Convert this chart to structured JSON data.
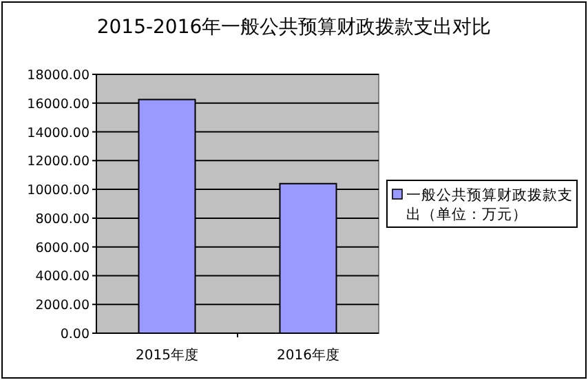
{
  "chart_data": {
    "type": "bar",
    "title": "2015-2016年一般公共预算财政拨款支出对比",
    "categories": [
      "2015年度",
      "2016年度"
    ],
    "series": [
      {
        "name": "一般公共预算财政拨款支出（单位：万元）",
        "color": "#9999ff",
        "values": [
          16250,
          10400
        ]
      }
    ],
    "ylim": [
      0,
      18000
    ],
    "yticks": [
      {
        "value": 0,
        "label": "0.00"
      },
      {
        "value": 2000,
        "label": "2000.00"
      },
      {
        "value": 4000,
        "label": "4000.00"
      },
      {
        "value": 6000,
        "label": "6000.00"
      },
      {
        "value": 8000,
        "label": "8000.00"
      },
      {
        "value": 10000,
        "label": "10000.00"
      },
      {
        "value": 12000,
        "label": "12000.00"
      },
      {
        "value": 14000,
        "label": "14000.00"
      },
      {
        "value": 16000,
        "label": "16000.00"
      },
      {
        "value": 18000,
        "label": "18000.00"
      }
    ],
    "grid": "y",
    "legend": "right"
  }
}
